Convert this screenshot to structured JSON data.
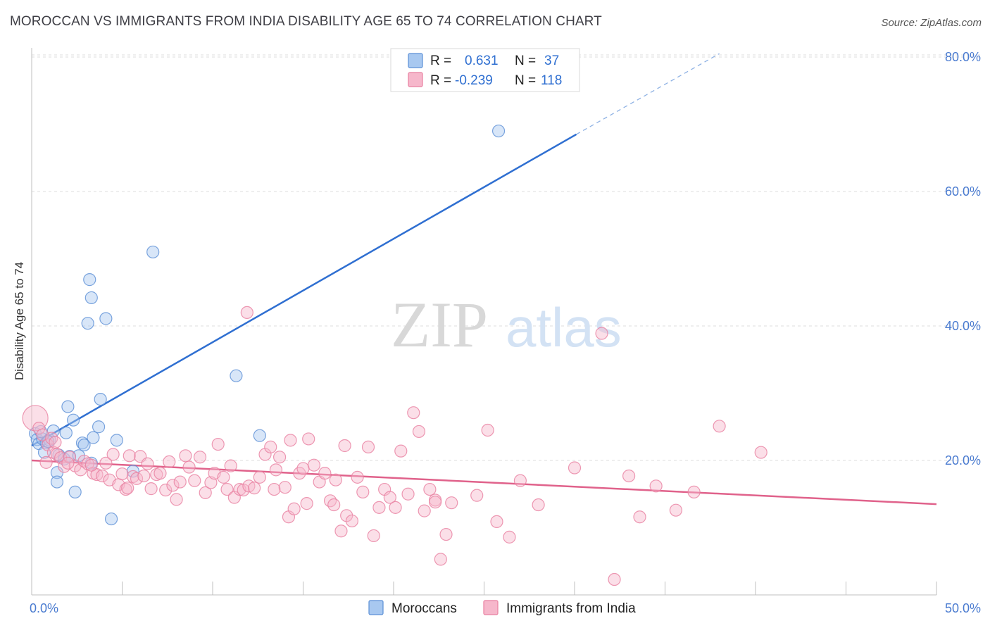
{
  "header": {
    "title": "MOROCCAN VS IMMIGRANTS FROM INDIA DISABILITY AGE 65 TO 74 CORRELATION CHART",
    "source": "Source: ZipAtlas.com"
  },
  "watermark": {
    "zip": "ZIP",
    "atlas": "atlas"
  },
  "legend": {
    "rows": [
      {
        "r_label": "R =",
        "r_value": "0.631",
        "n_label": "N =",
        "n_value": "37",
        "color": "#a8c8f0",
        "stroke": "#5b8fd6"
      },
      {
        "r_label": "R =",
        "r_value": "-0.239",
        "n_label": "N =",
        "n_value": "118",
        "color": "#f6b7cb",
        "stroke": "#e87fa0"
      }
    ]
  },
  "bottom_legend": [
    {
      "label": "Moroccans",
      "color": "#a8c8f0",
      "stroke": "#5b8fd6"
    },
    {
      "label": "Immigrants from India",
      "color": "#f6b7cb",
      "stroke": "#e87fa0"
    }
  ],
  "chart_data": {
    "type": "scatter",
    "ylabel": "Disability Age 65 to 74",
    "xlim": [
      0,
      50
    ],
    "ylim": [
      0,
      82
    ],
    "x_tick_labels": [
      "0.0%",
      "50.0%"
    ],
    "y_ticks": [
      {
        "value": 20,
        "label": "20.0%"
      },
      {
        "value": 40,
        "label": "40.0%"
      },
      {
        "value": 60,
        "label": "60.0%"
      },
      {
        "value": 80,
        "label": "80.0%"
      }
    ],
    "grid": true,
    "series": [
      {
        "name": "Moroccans",
        "color": "#5b8fd6",
        "fill": "#a8c8f0",
        "trend": {
          "x1": 0.0,
          "y1": 22.2,
          "x2": 30.1,
          "y2": 68.5,
          "dash_x2": 38.0,
          "dash_y2": 80.5
        },
        "points": [
          [
            0.2,
            24.0
          ],
          [
            0.3,
            23.1
          ],
          [
            0.4,
            22.5
          ],
          [
            0.6,
            23.2
          ],
          [
            0.5,
            24.3
          ],
          [
            0.8,
            22.6
          ],
          [
            1.0,
            23.0
          ],
          [
            1.2,
            24.4
          ],
          [
            0.7,
            21.2
          ],
          [
            1.5,
            20.8
          ],
          [
            1.8,
            20.2
          ],
          [
            1.9,
            24.1
          ],
          [
            2.0,
            28.0
          ],
          [
            2.3,
            26.0
          ],
          [
            2.1,
            20.6
          ],
          [
            2.6,
            20.7
          ],
          [
            2.8,
            22.6
          ],
          [
            2.9,
            22.3
          ],
          [
            3.3,
            19.6
          ],
          [
            3.4,
            23.4
          ],
          [
            3.7,
            25.0
          ],
          [
            3.8,
            29.1
          ],
          [
            3.1,
            40.4
          ],
          [
            3.2,
            46.9
          ],
          [
            3.3,
            44.2
          ],
          [
            4.1,
            41.1
          ],
          [
            4.4,
            11.3
          ],
          [
            4.7,
            23.0
          ],
          [
            5.6,
            18.4
          ],
          [
            6.7,
            51.0
          ],
          [
            1.4,
            18.2
          ],
          [
            1.4,
            16.8
          ],
          [
            2.4,
            15.3
          ],
          [
            11.3,
            32.6
          ],
          [
            12.6,
            23.7
          ],
          [
            25.8,
            69.0
          ],
          [
            0.9,
            22.8
          ]
        ]
      },
      {
        "name": "Immigrants from India",
        "color": "#e87fa0",
        "fill": "#f6b7cb",
        "trend": {
          "x1": 0.0,
          "y1": 20.0,
          "x2": 50.0,
          "y2": 13.5
        },
        "points": [
          [
            0.2,
            26.3
          ],
          [
            0.4,
            24.8
          ],
          [
            0.6,
            23.8
          ],
          [
            0.9,
            22.3
          ],
          [
            1.1,
            23.3
          ],
          [
            1.2,
            21.2
          ],
          [
            1.4,
            20.9
          ],
          [
            1.6,
            20.4
          ],
          [
            1.8,
            19.1
          ],
          [
            2.1,
            20.5
          ],
          [
            2.4,
            19.2
          ],
          [
            2.7,
            18.6
          ],
          [
            2.9,
            19.9
          ],
          [
            3.1,
            19.5
          ],
          [
            3.4,
            18.1
          ],
          [
            3.6,
            17.9
          ],
          [
            3.9,
            17.7
          ],
          [
            4.1,
            19.6
          ],
          [
            4.3,
            17.1
          ],
          [
            4.5,
            20.9
          ],
          [
            4.8,
            16.4
          ],
          [
            5.0,
            18.0
          ],
          [
            5.2,
            15.7
          ],
          [
            5.4,
            20.7
          ],
          [
            5.6,
            17.6
          ],
          [
            5.8,
            17.3
          ],
          [
            6.0,
            20.6
          ],
          [
            6.2,
            17.7
          ],
          [
            6.4,
            19.5
          ],
          [
            6.6,
            15.8
          ],
          [
            6.9,
            17.9
          ],
          [
            7.1,
            18.1
          ],
          [
            7.4,
            15.6
          ],
          [
            7.6,
            19.8
          ],
          [
            7.8,
            16.3
          ],
          [
            8.0,
            14.2
          ],
          [
            8.2,
            16.8
          ],
          [
            8.5,
            20.7
          ],
          [
            8.7,
            19.0
          ],
          [
            9.0,
            17.0
          ],
          [
            9.3,
            20.5
          ],
          [
            9.6,
            15.2
          ],
          [
            9.9,
            16.7
          ],
          [
            10.1,
            18.1
          ],
          [
            10.3,
            22.4
          ],
          [
            10.6,
            17.5
          ],
          [
            10.8,
            15.7
          ],
          [
            11.0,
            19.2
          ],
          [
            11.2,
            14.5
          ],
          [
            11.5,
            15.7
          ],
          [
            11.7,
            15.6
          ],
          [
            12.0,
            16.2
          ],
          [
            12.3,
            15.9
          ],
          [
            12.6,
            17.5
          ],
          [
            12.9,
            20.9
          ],
          [
            13.2,
            22.0
          ],
          [
            13.4,
            15.7
          ],
          [
            13.7,
            20.5
          ],
          [
            14.0,
            16.0
          ],
          [
            14.2,
            11.6
          ],
          [
            14.5,
            12.8
          ],
          [
            14.8,
            18.1
          ],
          [
            15.0,
            18.8
          ],
          [
            15.3,
            23.2
          ],
          [
            15.6,
            19.3
          ],
          [
            15.9,
            16.8
          ],
          [
            16.2,
            18.1
          ],
          [
            16.5,
            14.0
          ],
          [
            16.8,
            17.1
          ],
          [
            17.1,
            9.5
          ],
          [
            17.4,
            11.8
          ],
          [
            17.7,
            11.0
          ],
          [
            18.0,
            17.5
          ],
          [
            18.3,
            15.3
          ],
          [
            18.6,
            22.0
          ],
          [
            18.9,
            8.8
          ],
          [
            19.2,
            13.0
          ],
          [
            19.5,
            15.7
          ],
          [
            19.8,
            14.5
          ],
          [
            20.1,
            13.0
          ],
          [
            20.4,
            21.4
          ],
          [
            20.8,
            15.0
          ],
          [
            21.1,
            27.1
          ],
          [
            21.4,
            24.3
          ],
          [
            21.7,
            12.5
          ],
          [
            22.0,
            15.7
          ],
          [
            22.3,
            14.1
          ],
          [
            22.6,
            5.3
          ],
          [
            22.9,
            9.0
          ],
          [
            23.2,
            13.7
          ],
          [
            24.6,
            14.8
          ],
          [
            25.2,
            24.5
          ],
          [
            25.7,
            10.9
          ],
          [
            26.4,
            8.6
          ],
          [
            27.0,
            17.0
          ],
          [
            28.0,
            13.4
          ],
          [
            30.0,
            18.9
          ],
          [
            31.5,
            38.9
          ],
          [
            32.2,
            2.3
          ],
          [
            33.0,
            17.7
          ],
          [
            33.6,
            11.6
          ],
          [
            34.5,
            16.2
          ],
          [
            35.6,
            12.6
          ],
          [
            36.6,
            15.3
          ],
          [
            38.0,
            25.1
          ],
          [
            40.3,
            21.2
          ],
          [
            0.8,
            19.7
          ],
          [
            1.3,
            22.7
          ],
          [
            2.0,
            19.6
          ],
          [
            3.3,
            19.3
          ],
          [
            5.3,
            15.9
          ],
          [
            15.2,
            13.6
          ],
          [
            11.9,
            42.0
          ],
          [
            22.3,
            13.8
          ],
          [
            17.3,
            22.2
          ],
          [
            14.3,
            23.0
          ],
          [
            16.7,
            13.4
          ],
          [
            13.5,
            18.6
          ]
        ]
      }
    ]
  }
}
